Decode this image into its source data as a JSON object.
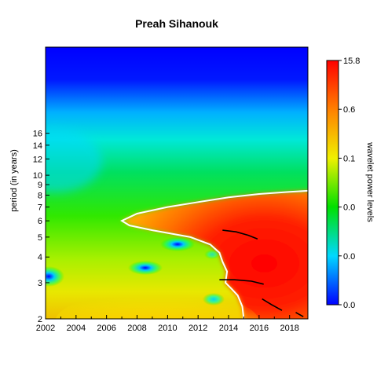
{
  "chart_data": {
    "type": "heatmap",
    "title": "Preah Sihanouk",
    "xlabel": "",
    "ylabel": "period (in years)",
    "x_ticks": [
      2002,
      2004,
      2006,
      2008,
      2010,
      2012,
      2014,
      2016,
      2018
    ],
    "xlim": [
      2002,
      2019.2
    ],
    "y_scale": "log2",
    "y_ticks": [
      2,
      3,
      4,
      5,
      6,
      7,
      8,
      9,
      10,
      12,
      14,
      16
    ],
    "ylim": [
      2,
      42
    ],
    "colorbar": {
      "title": "wavelet power levels",
      "labels": [
        "0.0",
        "0.0",
        "0.0",
        "0.1",
        "0.6",
        "15.8"
      ],
      "colors": [
        "#0000ff",
        "#00e5ff",
        "#00e000",
        "#ffff00",
        "#ff8000",
        "#ff0000"
      ]
    },
    "significance_contour": [
      [
        2015.0,
        2.0
      ],
      [
        2014.9,
        2.3
      ],
      [
        2014.6,
        2.6
      ],
      [
        2014.2,
        2.8
      ],
      [
        2013.8,
        3.0
      ],
      [
        2013.9,
        3.4
      ],
      [
        2013.6,
        3.8
      ],
      [
        2013.4,
        4.2
      ],
      [
        2012.8,
        4.6
      ],
      [
        2011.5,
        5.0
      ],
      [
        2009.0,
        5.4
      ],
      [
        2007.5,
        5.7
      ],
      [
        2007.0,
        6.0
      ],
      [
        2008.0,
        6.5
      ],
      [
        2010.0,
        7.0
      ],
      [
        2012.0,
        7.4
      ],
      [
        2014.0,
        7.8
      ],
      [
        2016.0,
        8.1
      ],
      [
        2018.0,
        8.3
      ],
      [
        2019.2,
        8.4
      ]
    ],
    "ridges": [
      [
        [
          2013.6,
          5.4
        ],
        [
          2014.5,
          5.3
        ],
        [
          2015.3,
          5.1
        ],
        [
          2015.9,
          4.9
        ]
      ],
      [
        [
          2013.4,
          3.1
        ],
        [
          2014.4,
          3.1
        ],
        [
          2015.5,
          3.05
        ],
        [
          2016.3,
          2.95
        ]
      ],
      [
        [
          2016.2,
          2.5
        ],
        [
          2016.8,
          2.35
        ],
        [
          2017.5,
          2.2
        ]
      ],
      [
        [
          2018.4,
          2.15
        ],
        [
          2018.9,
          2.05
        ]
      ]
    ]
  }
}
